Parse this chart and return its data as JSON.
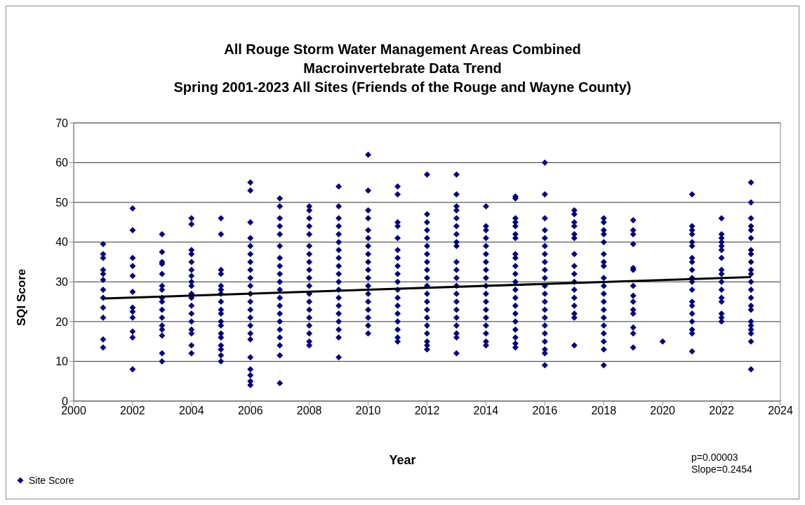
{
  "chart_data": {
    "type": "scatter",
    "title": "All Rouge Storm Water Management Areas Combined\nMacroinvertebrate Data Trend\nSpring 2001-2023 All Sites (Friends of the Rouge and Wayne County)",
    "xlabel": "Year",
    "ylabel": "SQI Score",
    "xlim": [
      2000,
      2024
    ],
    "xticks": [
      2000,
      2002,
      2004,
      2006,
      2008,
      2010,
      2012,
      2014,
      2016,
      2018,
      2020,
      2022,
      2024
    ],
    "ylim": [
      0,
      70
    ],
    "yticks": [
      0,
      10,
      20,
      30,
      40,
      50,
      60,
      70
    ],
    "grid": "y",
    "legend": "bottom left",
    "annotations": [
      "p=0.00003",
      "Slope=0.2454"
    ],
    "series": [
      {
        "name": "Site Score",
        "color": "#000080",
        "marker": "diamond",
        "x": [
          2001,
          2001,
          2001,
          2001,
          2001,
          2001,
          2001,
          2001,
          2001,
          2001,
          2001,
          2001,
          2002,
          2002,
          2002,
          2002,
          2002,
          2002,
          2002,
          2002,
          2002,
          2002,
          2002,
          2002,
          2003,
          2003,
          2003,
          2003,
          2003,
          2003,
          2003,
          2003,
          2003,
          2003,
          2003,
          2003,
          2003,
          2003,
          2003,
          2003,
          2004,
          2004,
          2004,
          2004,
          2004,
          2004,
          2004,
          2004,
          2004,
          2004,
          2004,
          2004,
          2004,
          2004,
          2004,
          2004,
          2004,
          2004,
          2005,
          2005,
          2005,
          2005,
          2005,
          2005,
          2005,
          2005,
          2005,
          2005,
          2005,
          2005,
          2005,
          2005,
          2005,
          2005,
          2005,
          2005,
          2006,
          2006,
          2006,
          2006,
          2006,
          2006,
          2006,
          2006,
          2006,
          2006,
          2006,
          2006,
          2006,
          2006,
          2006,
          2006,
          2006,
          2006,
          2006,
          2006,
          2006,
          2006,
          2007,
          2007,
          2007,
          2007,
          2007,
          2007,
          2007,
          2007,
          2007,
          2007,
          2007,
          2007,
          2007,
          2007,
          2007,
          2007,
          2007,
          2007,
          2007,
          2007,
          2008,
          2008,
          2008,
          2008,
          2008,
          2008,
          2008,
          2008,
          2008,
          2008,
          2008,
          2008,
          2008,
          2008,
          2008,
          2008,
          2008,
          2008,
          2008,
          2009,
          2009,
          2009,
          2009,
          2009,
          2009,
          2009,
          2009,
          2009,
          2009,
          2009,
          2009,
          2009,
          2009,
          2009,
          2009,
          2009,
          2009,
          2009,
          2010,
          2010,
          2010,
          2010,
          2010,
          2010,
          2010,
          2010,
          2010,
          2010,
          2010,
          2010,
          2010,
          2010,
          2010,
          2010,
          2010,
          2010,
          2011,
          2011,
          2011,
          2011,
          2011,
          2011,
          2011,
          2011,
          2011,
          2011,
          2011,
          2011,
          2011,
          2011,
          2011,
          2011,
          2011,
          2011,
          2012,
          2012,
          2012,
          2012,
          2012,
          2012,
          2012,
          2012,
          2012,
          2012,
          2012,
          2012,
          2012,
          2012,
          2012,
          2012,
          2012,
          2012,
          2012,
          2012,
          2013,
          2013,
          2013,
          2013,
          2013,
          2013,
          2013,
          2013,
          2013,
          2013,
          2013,
          2013,
          2013,
          2013,
          2013,
          2013,
          2013,
          2013,
          2013,
          2013,
          2013,
          2014,
          2014,
          2014,
          2014,
          2014,
          2014,
          2014,
          2014,
          2014,
          2014,
          2014,
          2014,
          2014,
          2014,
          2014,
          2014,
          2014,
          2014,
          2015,
          2015,
          2015,
          2015,
          2015,
          2015,
          2015,
          2015,
          2015,
          2015,
          2015,
          2015,
          2015,
          2015,
          2015,
          2015,
          2015,
          2015,
          2015,
          2015,
          2015,
          2016,
          2016,
          2016,
          2016,
          2016,
          2016,
          2016,
          2016,
          2016,
          2016,
          2016,
          2016,
          2016,
          2016,
          2016,
          2016,
          2016,
          2016,
          2016,
          2016,
          2016,
          2017,
          2017,
          2017,
          2017,
          2017,
          2017,
          2017,
          2017,
          2017,
          2017,
          2017,
          2017,
          2017,
          2017,
          2017,
          2017,
          2018,
          2018,
          2018,
          2018,
          2018,
          2018,
          2018,
          2018,
          2018,
          2018,
          2018,
          2018,
          2018,
          2018,
          2018,
          2018,
          2018,
          2018,
          2018,
          2019,
          2019,
          2019,
          2019,
          2019,
          2019,
          2019,
          2019,
          2019,
          2019,
          2019,
          2019,
          2019,
          2019,
          2020,
          2021,
          2021,
          2021,
          2021,
          2021,
          2021,
          2021,
          2021,
          2021,
          2021,
          2021,
          2021,
          2021,
          2021,
          2021,
          2021,
          2021,
          2021,
          2021,
          2022,
          2022,
          2022,
          2022,
          2022,
          2022,
          2022,
          2022,
          2022,
          2022,
          2022,
          2022,
          2022,
          2022,
          2022,
          2022,
          2023,
          2023,
          2023,
          2023,
          2023,
          2023,
          2023,
          2023,
          2023,
          2023,
          2023,
          2023,
          2023,
          2023,
          2023,
          2023,
          2023,
          2023,
          2023,
          2023,
          2023,
          2023
        ],
        "values": [
          39.5,
          37,
          36,
          33,
          32,
          30.5,
          28,
          26,
          23.5,
          21,
          15.5,
          13.5,
          48.5,
          43,
          36,
          34,
          31.5,
          27.5,
          23.5,
          22.5,
          21,
          17.5,
          16,
          8,
          42,
          37.5,
          35,
          34.5,
          32,
          29,
          28,
          26,
          25,
          23,
          21,
          19,
          18,
          16.5,
          12,
          10,
          46,
          44.5,
          38,
          37,
          35,
          33,
          31.5,
          30,
          29,
          27,
          26,
          24,
          22,
          20,
          18,
          17,
          14,
          12,
          46,
          42,
          33,
          32,
          29,
          28,
          27,
          25,
          23,
          22,
          20,
          19,
          17,
          16,
          14,
          13,
          11.5,
          10,
          55,
          53,
          45,
          41,
          39,
          37,
          35,
          33,
          31,
          29,
          27,
          25,
          23,
          21,
          19,
          17,
          15.5,
          11,
          8,
          6.5,
          5,
          4,
          51,
          49,
          46,
          44,
          42,
          39,
          36,
          34,
          32,
          30,
          28,
          26,
          24,
          22,
          20,
          18,
          16,
          14,
          11.5,
          4.5,
          49,
          48,
          46,
          44,
          42,
          39,
          37,
          35,
          33,
          31,
          29,
          27,
          25,
          23,
          21,
          19,
          17,
          15,
          14,
          54,
          49,
          46,
          44,
          42,
          40,
          38,
          36,
          34,
          32,
          30,
          28,
          26,
          24,
          22,
          20,
          18,
          16,
          11,
          62,
          53,
          48,
          46,
          43,
          41,
          39,
          37,
          35,
          33,
          31,
          29,
          27,
          25,
          23,
          21,
          19,
          17,
          54,
          52,
          45,
          44,
          41,
          38,
          36,
          34,
          32,
          30,
          28,
          26,
          24,
          22,
          20,
          18,
          16,
          15,
          57,
          47,
          45,
          43,
          41,
          39,
          37,
          35,
          33,
          31,
          29,
          27,
          25,
          23,
          21,
          19,
          17,
          15,
          14,
          13,
          57,
          52,
          49,
          48,
          46,
          44,
          42,
          40,
          39,
          35,
          33,
          31,
          29,
          27,
          25,
          23,
          21,
          19,
          17,
          16,
          12,
          49,
          44,
          43,
          41,
          39,
          37,
          35,
          33,
          31,
          29,
          27,
          25,
          23,
          21,
          19,
          17,
          15,
          14,
          51.5,
          51,
          46,
          45,
          44,
          42,
          41,
          37,
          36,
          34,
          32,
          30,
          28,
          26,
          24,
          22,
          20,
          18,
          16,
          14.5,
          13.5,
          60,
          52,
          46,
          43,
          41,
          39,
          37,
          35,
          33,
          31,
          29,
          27,
          25,
          23,
          21,
          19,
          17,
          15,
          13,
          12,
          9,
          48,
          47,
          45,
          44,
          42,
          41,
          37,
          34,
          32,
          30,
          28,
          26,
          24,
          22,
          21,
          14,
          46,
          45,
          43,
          42,
          40,
          37,
          35,
          34,
          31,
          29,
          27,
          25,
          23,
          21,
          19,
          17,
          15,
          13,
          9,
          45.5,
          43,
          42,
          39.5,
          33.5,
          33,
          29,
          26.5,
          25,
          23,
          22,
          18.5,
          17,
          13.5,
          15,
          52,
          44,
          43,
          42,
          40,
          39,
          36,
          35,
          33,
          31,
          30,
          28,
          25,
          24,
          22,
          20,
          18,
          17,
          12.5,
          46,
          42,
          41,
          40,
          39,
          38,
          36,
          33,
          32,
          30,
          28,
          26,
          25,
          22,
          21,
          20,
          55,
          50,
          46,
          44,
          43,
          41,
          38,
          37,
          35,
          33,
          32,
          30,
          28,
          26,
          24,
          23,
          20,
          19,
          18,
          17,
          15,
          8
        ]
      },
      {
        "type": "line",
        "marker": "none",
        "color": "#000000",
        "x": [
          2001,
          2023
        ],
        "values": [
          25.8,
          31.2
        ]
      }
    ]
  }
}
